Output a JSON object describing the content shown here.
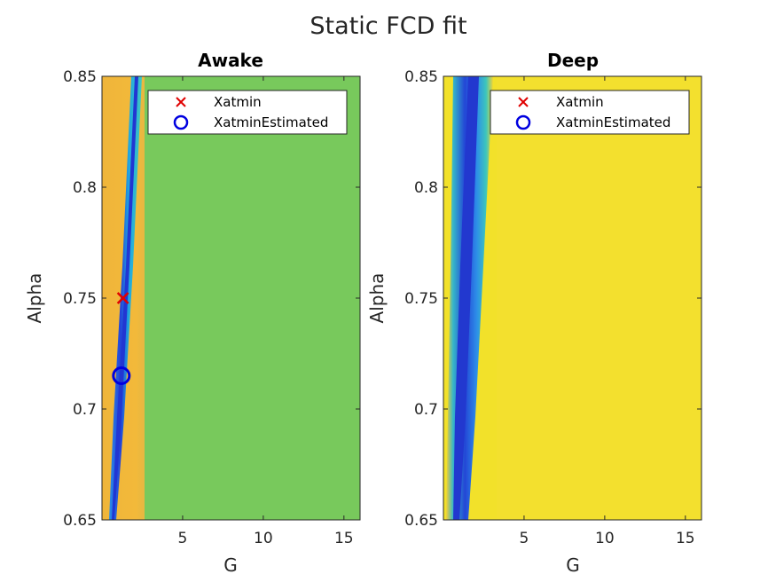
{
  "suptitle": "Static FCD fit",
  "colors": {
    "blue_marker": "#0000e0",
    "red_marker": "#e00000",
    "awake_bg": "#78c95c",
    "deep_bg": "#f2e12a",
    "orange": "#f0b53a"
  },
  "chart_data": [
    {
      "type": "heatmap",
      "title": "Awake",
      "xlabel": "G",
      "ylabel": "Alpha",
      "xlim": [
        0,
        16
      ],
      "ylim": [
        0.65,
        0.85
      ],
      "xticks": [
        "5",
        "10",
        "15"
      ],
      "yticks": [
        "0.65",
        "0.7",
        "0.75",
        "0.8",
        "0.85"
      ],
      "legend": {
        "location": "top-right",
        "entries": [
          "Xatmin",
          "XatminEstimated"
        ]
      },
      "markers": [
        {
          "name": "Xatmin",
          "symbol": "x",
          "x": 1.3,
          "y": 0.75
        },
        {
          "name": "XatminEstimated",
          "symbol": "o",
          "x": 1.2,
          "y": 0.715
        }
      ],
      "colormap_note": "narrow blue valley near G≈1, orange band G<2.5, green elsewhere"
    },
    {
      "type": "heatmap",
      "title": "Deep",
      "xlabel": "G",
      "ylabel": "Alpha",
      "xlim": [
        0,
        16
      ],
      "ylim": [
        0.65,
        0.85
      ],
      "xticks": [
        "5",
        "10",
        "15"
      ],
      "yticks": [
        "0.65",
        "0.7",
        "0.75",
        "0.8",
        "0.85"
      ],
      "legend": {
        "location": "top-right",
        "entries": [
          "Xatmin",
          "XatminEstimated"
        ]
      },
      "markers": [],
      "colormap_note": "blue valley near G≈1 widening upward, yellow elsewhere"
    }
  ]
}
